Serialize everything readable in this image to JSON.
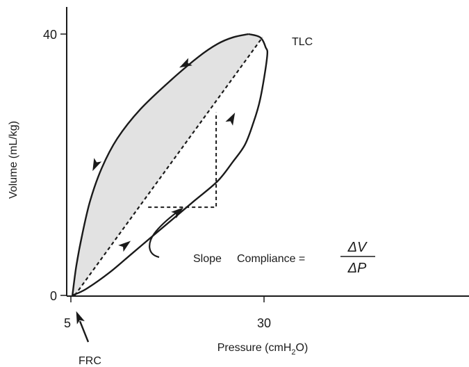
{
  "chart_data": {
    "type": "line",
    "title": "",
    "xlabel": "Pressure (cmH",
    "xlabel_sub": "2",
    "xlabel_tail": "O)",
    "ylabel": "Volume (mL/kg)",
    "xlim": [
      5,
      55
    ],
    "ylim": [
      0,
      40
    ],
    "x_ticks": [
      {
        "value": 5,
        "label": "5"
      },
      {
        "value": 30,
        "label": "30"
      }
    ],
    "y_ticks": [
      {
        "value": 0,
        "label": "0"
      },
      {
        "value": 40,
        "label": "40"
      }
    ],
    "grid": false,
    "series": [
      {
        "role": "inflation",
        "x": [
          5.2,
          7,
          10,
          13,
          16,
          18,
          21,
          24,
          26,
          27.5,
          28.5,
          29.5,
          30.4,
          30.2,
          29.5,
          28
        ],
        "y": [
          0,
          1,
          3.5,
          6.5,
          9.5,
          11.5,
          14.5,
          17.5,
          20.5,
          23,
          26,
          30,
          36.5,
          38,
          39.5,
          40
        ]
      },
      {
        "role": "deflation",
        "x": [
          28,
          26,
          24,
          21.5,
          18,
          14,
          11,
          9,
          7.5,
          6.5,
          5.7,
          5.2
        ],
        "y": [
          40,
          39.5,
          38.5,
          36.5,
          33,
          28.5,
          24,
          19.5,
          14.5,
          9.5,
          4.5,
          0
        ]
      },
      {
        "role": "compliance-line",
        "x": [
          5.5,
          29.8
        ],
        "y": [
          0,
          39.5
        ]
      },
      {
        "role": "slope-triangle",
        "x": [
          15,
          23.8,
          23.8
        ],
        "y": [
          13.5,
          13.5,
          28
        ]
      }
    ],
    "annotations": {
      "tlc": "TLC",
      "frc": "FRC",
      "slope": "Slope",
      "compliance": "Compliance =",
      "numerator": "ΔV",
      "denominator": "ΔP"
    },
    "colors": {
      "loop_fill": "#e2e2e2",
      "line": "#1a1a1a"
    }
  }
}
